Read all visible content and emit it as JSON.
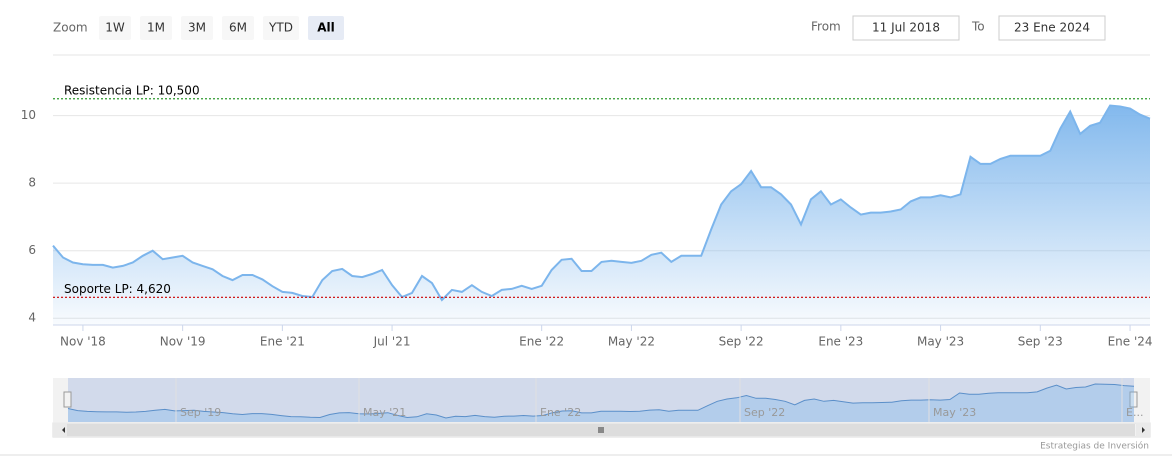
{
  "range_selector": {
    "zoom_label": "Zoom",
    "buttons": [
      "1W",
      "1M",
      "3M",
      "6M",
      "YTD",
      "All"
    ],
    "selected": 5,
    "from_label": "From",
    "from": "11 Jul 2018",
    "to_label": "To",
    "to": "23 Ene 2024"
  },
  "chart_data": {
    "type": "area",
    "color": "#7cb5ec",
    "grid": true,
    "categories": [
      null,
      null,
      null,
      "Nov '18",
      null,
      null,
      null,
      null,
      null,
      null,
      null,
      null,
      null,
      "Nov '19",
      null,
      null,
      null,
      null,
      null,
      null,
      null,
      null,
      null,
      "Ene '21",
      null,
      null,
      null,
      null,
      null,
      null,
      null,
      null,
      null,
      null,
      "Jul '21",
      null,
      null,
      null,
      null,
      null,
      null,
      null,
      null,
      null,
      null,
      null,
      null,
      null,
      null,
      "Ene '22",
      null,
      null,
      null,
      null,
      null,
      null,
      null,
      null,
      "May '22",
      null,
      null,
      null,
      null,
      null,
      null,
      null,
      null,
      null,
      null,
      "Sep '22",
      null,
      null,
      null,
      null,
      null,
      null,
      null,
      null,
      null,
      "Ene '23",
      null,
      null,
      null,
      null,
      null,
      null,
      null,
      null,
      null,
      "May '23",
      null,
      null,
      null,
      null,
      null,
      null,
      null,
      null,
      null,
      "Sep '23",
      null,
      null,
      null,
      null,
      null,
      null,
      null,
      null,
      "Ene '24",
      null,
      null
    ],
    "values": [
      6.15,
      5.8,
      5.65,
      5.6,
      5.58,
      5.58,
      5.5,
      5.55,
      5.65,
      5.85,
      6.0,
      5.75,
      5.8,
      5.85,
      5.65,
      5.55,
      5.45,
      5.25,
      5.13,
      5.28,
      5.28,
      5.15,
      4.95,
      4.78,
      4.75,
      4.66,
      4.63,
      5.13,
      5.4,
      5.46,
      5.25,
      5.22,
      5.31,
      5.43,
      4.98,
      4.63,
      4.75,
      5.25,
      5.04,
      4.54,
      4.84,
      4.78,
      4.98,
      4.78,
      4.66,
      4.84,
      4.87,
      4.96,
      4.87,
      4.96,
      5.43,
      5.73,
      5.76,
      5.4,
      5.4,
      5.67,
      5.7,
      5.67,
      5.64,
      5.7,
      5.88,
      5.94,
      5.67,
      5.85,
      5.85,
      5.85,
      6.63,
      7.37,
      7.76,
      7.97,
      8.36,
      7.88,
      7.88,
      7.67,
      7.37,
      6.78,
      7.52,
      7.76,
      7.37,
      7.52,
      7.28,
      7.07,
      7.13,
      7.13,
      7.16,
      7.22,
      7.46,
      7.58,
      7.58,
      7.64,
      7.58,
      7.67,
      8.78,
      8.57,
      8.57,
      8.72,
      8.81,
      8.81,
      8.81,
      8.81,
      8.96,
      9.61,
      10.12,
      9.46,
      9.7,
      9.79,
      10.3,
      10.27,
      10.21,
      10.03,
      9.91
    ],
    "ylim": [
      3.8,
      11.5
    ],
    "yticks": [
      4,
      6,
      8,
      10
    ],
    "plot_lines": [
      {
        "value": 10.5,
        "label": "Resistencia LP: 10,500",
        "color": "#2e9a2e"
      },
      {
        "value": 4.62,
        "label": "Soporte LP: 4,620",
        "color": "#cc0000"
      }
    ]
  },
  "navigator": {
    "labels": [
      "Sep '19",
      "May '21",
      "Ene '22",
      "Sep '22",
      "May '23",
      "E..."
    ]
  },
  "credits": "Estrategias de Inversión"
}
